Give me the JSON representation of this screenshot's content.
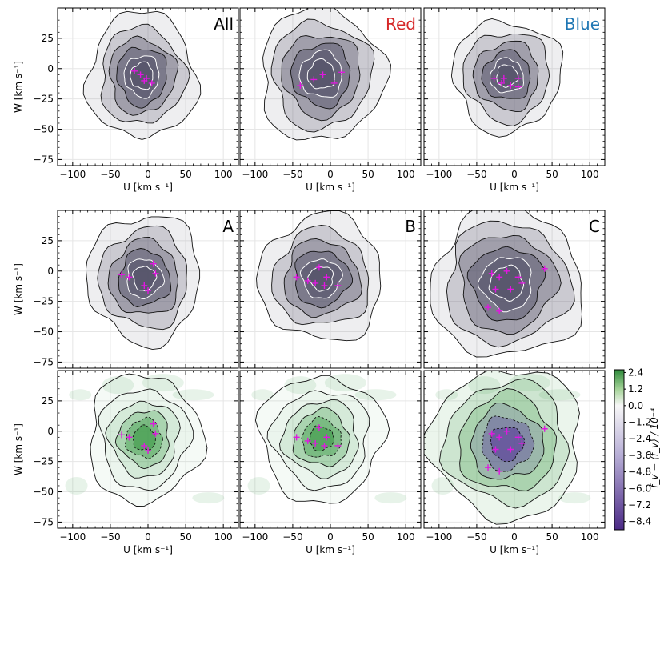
{
  "figure": {
    "colorbar": {
      "label": "f_v − ⟨f_v⟩ / 10⁻⁴",
      "ticks": [
        "2.4",
        "1.2",
        "0.0",
        "−1.2",
        "−2.4",
        "−3.6",
        "−4.8",
        "−6.0",
        "−7.2",
        "−8.4"
      ],
      "range": [
        -9.0,
        2.6
      ],
      "colors": {
        "positive": "#2e8b3a",
        "zero": "#f7f7f7",
        "negative": "#4b2a86"
      }
    },
    "axes_text": {
      "xlabel": "U [km s⁻¹]",
      "ylabel": "W [km s⁻¹]",
      "xticks": [
        "−100",
        "−50",
        "0",
        "50",
        "100"
      ],
      "yticks": [
        "25",
        "0",
        "−25",
        "−50",
        "−75"
      ]
    },
    "colors": {
      "red_label": "#d62728",
      "blue_label": "#1f77b4",
      "marker": "#e018e0",
      "gray_fill": "#56546a",
      "green_fill": "#3d9a47"
    }
  },
  "chart_data": [
    {
      "type": "heatmap",
      "panel": "All",
      "label": "All",
      "label_color": "#000000",
      "xlim": [
        -120,
        120
      ],
      "ylim": [
        -80,
        50
      ],
      "fill": "density",
      "center": [
        -8,
        -6
      ],
      "extent": [
        [
          72,
          52
        ],
        [
          56,
          40
        ],
        [
          44,
          31
        ],
        [
          33,
          24
        ],
        [
          23,
          17
        ],
        [
          15,
          11
        ]
      ],
      "markers": [
        [
          -18,
          -2
        ],
        [
          -10,
          -5
        ],
        [
          -2,
          -8
        ],
        [
          5,
          -12
        ],
        [
          -5,
          -10
        ]
      ]
    },
    {
      "type": "heatmap",
      "panel": "Red",
      "label": "Red",
      "label_color": "#d62728",
      "xlim": [
        -120,
        120
      ],
      "ylim": [
        -80,
        50
      ],
      "fill": "density",
      "center": [
        -12,
        -5
      ],
      "extent": [
        [
          82,
          55
        ],
        [
          66,
          44
        ],
        [
          52,
          34
        ],
        [
          39,
          26
        ],
        [
          28,
          19
        ],
        [
          18,
          12
        ]
      ],
      "markers": [
        [
          -40,
          -14
        ],
        [
          -22,
          -9
        ],
        [
          -10,
          -5
        ],
        [
          5,
          -12
        ],
        [
          15,
          -3
        ]
      ]
    },
    {
      "type": "heatmap",
      "panel": "Blue",
      "label": "Blue",
      "label_color": "#1f77b4",
      "xlim": [
        -120,
        120
      ],
      "ylim": [
        -80,
        50
      ],
      "fill": "density",
      "center": [
        -10,
        -6
      ],
      "extent": [
        [
          72,
          46
        ],
        [
          57,
          37
        ],
        [
          43,
          28
        ],
        [
          32,
          20
        ],
        [
          22,
          14
        ],
        [
          14,
          9
        ]
      ],
      "markers": [
        [
          -27,
          -8
        ],
        [
          -14,
          -8
        ],
        [
          -17,
          -12
        ],
        [
          -5,
          -14
        ],
        [
          5,
          -8
        ],
        [
          5,
          -15
        ]
      ]
    },
    {
      "type": "heatmap",
      "panel": "A",
      "label": "A",
      "label_color": "#000000",
      "xlim": [
        -120,
        120
      ],
      "ylim": [
        -80,
        50
      ],
      "fill": "density",
      "center": [
        -5,
        -6
      ],
      "extent": [
        [
          75,
          53
        ],
        [
          59,
          41
        ],
        [
          46,
          31
        ],
        [
          34,
          23
        ],
        [
          24,
          16
        ],
        [
          15,
          10
        ]
      ],
      "markers": [
        [
          -35,
          -3
        ],
        [
          -25,
          -5
        ],
        [
          -5,
          -12
        ],
        [
          0,
          -16
        ],
        [
          7,
          6
        ],
        [
          10,
          -2
        ]
      ]
    },
    {
      "type": "heatmap",
      "panel": "B",
      "label": "B",
      "label_color": "#000000",
      "xlim": [
        -120,
        120
      ],
      "ylim": [
        -80,
        50
      ],
      "fill": "density",
      "center": [
        -12,
        -6
      ],
      "extent": [
        [
          82,
          52
        ],
        [
          64,
          40
        ],
        [
          50,
          31
        ],
        [
          37,
          23
        ],
        [
          26,
          16
        ],
        [
          16,
          10
        ]
      ],
      "markers": [
        [
          -45,
          -5
        ],
        [
          -30,
          -8
        ],
        [
          -20,
          -10
        ],
        [
          -15,
          3
        ],
        [
          -8,
          -12
        ],
        [
          -5,
          -5
        ],
        [
          10,
          -12
        ]
      ]
    },
    {
      "type": "heatmap",
      "panel": "C",
      "label": "C",
      "label_color": "#000000",
      "xlim": [
        -120,
        120
      ],
      "ylim": [
        -80,
        50
      ],
      "fill": "density",
      "center": [
        -10,
        -10
      ],
      "extent": [
        [
          100,
          62
        ],
        [
          82,
          50
        ],
        [
          64,
          40
        ],
        [
          48,
          30
        ],
        [
          34,
          22
        ],
        [
          22,
          14
        ]
      ],
      "markers": [
        [
          -30,
          -2
        ],
        [
          -25,
          -15
        ],
        [
          -20,
          -5
        ],
        [
          -10,
          0
        ],
        [
          -5,
          -15
        ],
        [
          5,
          -5
        ],
        [
          10,
          -10
        ],
        [
          40,
          2
        ],
        [
          -35,
          -30
        ],
        [
          -20,
          -33
        ]
      ]
    },
    {
      "type": "heatmap",
      "panel": "A residual",
      "label": "",
      "label_color": "#000000",
      "xlim": [
        -120,
        120
      ],
      "ylim": [
        -80,
        50
      ],
      "fill": "residual_positive",
      "center": [
        -5,
        -6
      ],
      "extent": [
        [
          75,
          53
        ],
        [
          59,
          41
        ],
        [
          46,
          31
        ],
        [
          34,
          23
        ],
        [
          24,
          16
        ],
        [
          15,
          10
        ]
      ],
      "markers": [
        [
          -35,
          -3
        ],
        [
          -25,
          -5
        ],
        [
          -5,
          -12
        ],
        [
          0,
          -16
        ],
        [
          7,
          6
        ],
        [
          10,
          -2
        ]
      ]
    },
    {
      "type": "heatmap",
      "panel": "B residual",
      "label": "",
      "label_color": "#000000",
      "xlim": [
        -120,
        120
      ],
      "ylim": [
        -80,
        50
      ],
      "fill": "residual_positive",
      "center": [
        -12,
        -6
      ],
      "extent": [
        [
          82,
          52
        ],
        [
          64,
          40
        ],
        [
          50,
          31
        ],
        [
          37,
          23
        ],
        [
          26,
          16
        ],
        [
          16,
          10
        ]
      ],
      "markers": [
        [
          -45,
          -5
        ],
        [
          -30,
          -8
        ],
        [
          -20,
          -10
        ],
        [
          -15,
          3
        ],
        [
          -8,
          -12
        ],
        [
          -5,
          -5
        ],
        [
          10,
          -12
        ]
      ]
    },
    {
      "type": "heatmap",
      "panel": "C residual",
      "label": "",
      "label_color": "#000000",
      "xlim": [
        -120,
        120
      ],
      "ylim": [
        -80,
        50
      ],
      "fill": "residual_negative",
      "center": [
        -10,
        -10
      ],
      "extent": [
        [
          100,
          62
        ],
        [
          82,
          50
        ],
        [
          64,
          40
        ],
        [
          48,
          30
        ],
        [
          34,
          22
        ],
        [
          22,
          14
        ]
      ],
      "markers": [
        [
          -30,
          -2
        ],
        [
          -25,
          -15
        ],
        [
          -20,
          -5
        ],
        [
          -10,
          0
        ],
        [
          -5,
          -15
        ],
        [
          5,
          -5
        ],
        [
          10,
          -10
        ],
        [
          40,
          2
        ],
        [
          -35,
          -30
        ],
        [
          -20,
          -33
        ]
      ]
    }
  ]
}
